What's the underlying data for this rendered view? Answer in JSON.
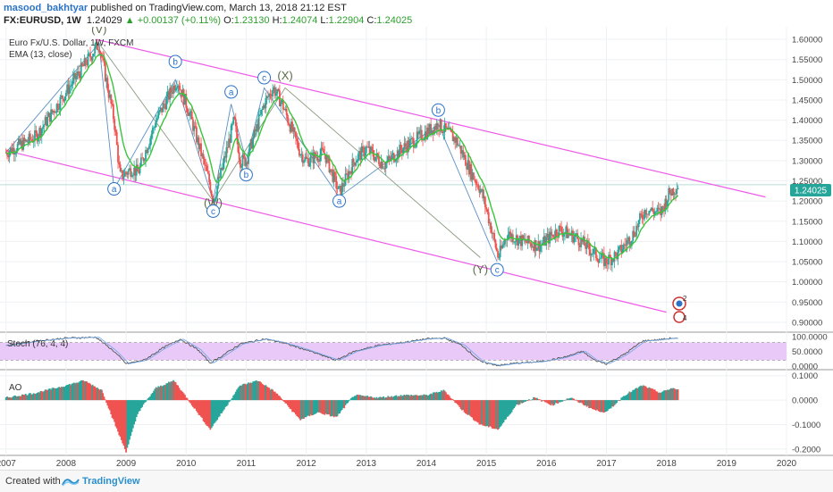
{
  "header": {
    "author": "masood_bakhtyar",
    "published": "published on TradingView.com, March 13, 2018 21:12 EST",
    "symbol": "FX:EURUSD, 1W",
    "last": "1.24029",
    "change": "+0.00137 (+0.11%)",
    "open_label": "O:",
    "open": "1.23130",
    "high_label": "H:",
    "high": "1.24074",
    "low_label": "L:",
    "low": "1.22904",
    "close_label": "C:",
    "close": "1.24025"
  },
  "legend": {
    "title": "Euro Fx/U.S. Dollar, 1W, FXCM",
    "ema": "EMA (13, close)",
    "stoch": "Stoch (76, 4, 4)",
    "ao": "AO"
  },
  "footer": {
    "created": "Created with",
    "brand": "TradingView"
  },
  "colors": {
    "up": "#26a69a",
    "down": "#ef5350",
    "ema": "#3bc43b",
    "channel": "#ee5be8",
    "wave": "#5b8fc4",
    "wave_grey": "#8a9a80",
    "stoch_fill": "#e8c9f7",
    "price_badge": "#26a69a"
  },
  "chart_data": [
    {
      "type": "candlestick",
      "title": "Euro Fx/U.S. Dollar, 1W, FXCM",
      "x_ticks": [
        "2007",
        "2008",
        "2009",
        "2010",
        "2011",
        "2012",
        "2013",
        "2014",
        "2015",
        "2016",
        "2017",
        "2018",
        "2019",
        "2020"
      ],
      "y_ticks": [
        "1.60000",
        "1.55000",
        "1.50000",
        "1.45000",
        "1.40000",
        "1.35000",
        "1.30000",
        "1.25000",
        "1.20000",
        "1.15000",
        "1.10000",
        "1.05000",
        "1.00000",
        "0.95000",
        "0.90000"
      ],
      "ylim": [
        0.88,
        1.62
      ],
      "last_price": "1.24025",
      "price_path": [
        [
          2007.0,
          1.32
        ],
        [
          2007.5,
          1.36
        ],
        [
          2008.0,
          1.47
        ],
        [
          2008.55,
          1.59
        ],
        [
          2008.8,
          1.4
        ],
        [
          2008.9,
          1.26
        ],
        [
          2009.1,
          1.28
        ],
        [
          2009.2,
          1.27
        ],
        [
          2009.5,
          1.4
        ],
        [
          2009.85,
          1.5
        ],
        [
          2010.05,
          1.42
        ],
        [
          2010.4,
          1.24
        ],
        [
          2010.45,
          1.2
        ],
        [
          2010.6,
          1.28
        ],
        [
          2010.8,
          1.4
        ],
        [
          2010.9,
          1.3
        ],
        [
          2011.0,
          1.3
        ],
        [
          2011.3,
          1.44
        ],
        [
          2011.45,
          1.48
        ],
        [
          2011.6,
          1.44
        ],
        [
          2011.9,
          1.32
        ],
        [
          2012.0,
          1.3
        ],
        [
          2012.3,
          1.32
        ],
        [
          2012.55,
          1.22
        ],
        [
          2012.8,
          1.3
        ],
        [
          2013.0,
          1.33
        ],
        [
          2013.3,
          1.29
        ],
        [
          2013.6,
          1.33
        ],
        [
          2013.9,
          1.36
        ],
        [
          2014.2,
          1.39
        ],
        [
          2014.5,
          1.35
        ],
        [
          2014.75,
          1.27
        ],
        [
          2014.9,
          1.23
        ],
        [
          2015.0,
          1.18
        ],
        [
          2015.2,
          1.06
        ],
        [
          2015.35,
          1.12
        ],
        [
          2015.6,
          1.1
        ],
        [
          2015.9,
          1.09
        ],
        [
          2016.2,
          1.13
        ],
        [
          2016.5,
          1.11
        ],
        [
          2016.8,
          1.07
        ],
        [
          2016.98,
          1.05
        ],
        [
          2017.2,
          1.07
        ],
        [
          2017.45,
          1.12
        ],
        [
          2017.65,
          1.18
        ],
        [
          2017.9,
          1.17
        ],
        [
          2018.05,
          1.22
        ],
        [
          2018.2,
          1.24
        ]
      ],
      "ema_label": "EMA (13, close)",
      "channel_upper": [
        [
          2008.5,
          1.6
        ],
        [
          2019.65,
          1.21
        ]
      ],
      "channel_lower": [
        [
          2007.0,
          1.325
        ],
        [
          2018.0,
          0.925
        ]
      ],
      "wave_labels": [
        {
          "text": "(V)",
          "x": 2008.55,
          "y": 1.625,
          "style": "plain"
        },
        {
          "text": "a",
          "x": 2008.8,
          "y": 1.23,
          "style": "circle"
        },
        {
          "text": "b",
          "x": 2009.82,
          "y": 1.545,
          "style": "circle"
        },
        {
          "text": "(W)",
          "x": 2010.45,
          "y": 1.195,
          "style": "plain"
        },
        {
          "text": "c",
          "x": 2010.45,
          "y": 1.175,
          "style": "circle"
        },
        {
          "text": "a",
          "x": 2010.75,
          "y": 1.47,
          "style": "circle"
        },
        {
          "text": "b",
          "x": 2011.0,
          "y": 1.265,
          "style": "circle"
        },
        {
          "text": "c",
          "x": 2011.3,
          "y": 1.505,
          "style": "circle"
        },
        {
          "text": "(X)",
          "x": 2011.65,
          "y": 1.51,
          "style": "plain"
        },
        {
          "text": "a",
          "x": 2012.55,
          "y": 1.2,
          "style": "circle"
        },
        {
          "text": "b",
          "x": 2014.2,
          "y": 1.425,
          "style": "circle"
        },
        {
          "text": "(Y)",
          "x": 2014.9,
          "y": 1.03,
          "style": "plain"
        },
        {
          "text": "c",
          "x": 2015.18,
          "y": 1.03,
          "style": "circle"
        }
      ],
      "wave_lines": [
        [
          [
            2007.0,
            1.32
          ],
          [
            2008.55,
            1.59
          ],
          [
            2008.8,
            1.23
          ],
          [
            2009.82,
            1.5
          ],
          [
            2010.45,
            1.2
          ],
          [
            2010.75,
            1.44
          ],
          [
            2011.0,
            1.3
          ],
          [
            2011.3,
            1.48
          ],
          [
            2012.55,
            1.21
          ],
          [
            2014.2,
            1.39
          ],
          [
            2015.18,
            1.05
          ]
        ]
      ],
      "grey_lines": [
        [
          [
            2008.55,
            1.59
          ],
          [
            2010.45,
            1.2
          ],
          [
            2011.65,
            1.48
          ],
          [
            2014.9,
            1.06
          ]
        ]
      ]
    },
    {
      "type": "line",
      "title": "Stoch (76, 4, 4)",
      "y_ticks": [
        "100.0000",
        "50.0000",
        "0.0000"
      ],
      "ylim": [
        0,
        100
      ],
      "band": [
        20,
        80
      ],
      "k_path": [
        [
          2007.0,
          70
        ],
        [
          2007.5,
          85
        ],
        [
          2008.0,
          95
        ],
        [
          2008.5,
          98
        ],
        [
          2008.8,
          50
        ],
        [
          2009.0,
          8
        ],
        [
          2009.3,
          20
        ],
        [
          2009.6,
          60
        ],
        [
          2009.9,
          92
        ],
        [
          2010.2,
          55
        ],
        [
          2010.4,
          10
        ],
        [
          2010.6,
          35
        ],
        [
          2010.9,
          75
        ],
        [
          2011.3,
          92
        ],
        [
          2011.6,
          80
        ],
        [
          2012.0,
          55
        ],
        [
          2012.5,
          20
        ],
        [
          2012.8,
          50
        ],
        [
          2013.2,
          70
        ],
        [
          2013.6,
          80
        ],
        [
          2014.0,
          92
        ],
        [
          2014.3,
          95
        ],
        [
          2014.6,
          70
        ],
        [
          2014.9,
          15
        ],
        [
          2015.2,
          2
        ],
        [
          2015.5,
          10
        ],
        [
          2015.9,
          15
        ],
        [
          2016.3,
          30
        ],
        [
          2016.6,
          50
        ],
        [
          2016.8,
          20
        ],
        [
          2017.0,
          8
        ],
        [
          2017.3,
          40
        ],
        [
          2017.6,
          85
        ],
        [
          2017.9,
          90
        ],
        [
          2018.1,
          95
        ],
        [
          2018.2,
          92
        ]
      ]
    },
    {
      "type": "bar",
      "title": "AO",
      "y_ticks": [
        "0.1000",
        "0.0000",
        "-0.1000",
        "-0.2000"
      ],
      "ylim": [
        -0.215,
        0.11
      ],
      "bar_profile": [
        [
          2007.0,
          0.01
        ],
        [
          2007.5,
          0.03
        ],
        [
          2008.0,
          0.06
        ],
        [
          2008.3,
          0.08
        ],
        [
          2008.6,
          0.04
        ],
        [
          2008.85,
          -0.12
        ],
        [
          2009.0,
          -0.21
        ],
        [
          2009.2,
          -0.05
        ],
        [
          2009.5,
          0.05
        ],
        [
          2009.8,
          0.08
        ],
        [
          2010.1,
          -0.02
        ],
        [
          2010.4,
          -0.12
        ],
        [
          2010.6,
          -0.05
        ],
        [
          2010.9,
          0.06
        ],
        [
          2011.2,
          0.08
        ],
        [
          2011.5,
          0.03
        ],
        [
          2011.9,
          -0.08
        ],
        [
          2012.2,
          -0.05
        ],
        [
          2012.5,
          -0.07
        ],
        [
          2012.8,
          0.02
        ],
        [
          2013.2,
          0.01
        ],
        [
          2013.6,
          0.02
        ],
        [
          2014.0,
          0.02
        ],
        [
          2014.3,
          0.04
        ],
        [
          2014.6,
          -0.04
        ],
        [
          2014.9,
          -0.1
        ],
        [
          2015.2,
          -0.12
        ],
        [
          2015.5,
          -0.02
        ],
        [
          2015.8,
          0.01
        ],
        [
          2016.1,
          -0.02
        ],
        [
          2016.4,
          0.01
        ],
        [
          2016.8,
          -0.04
        ],
        [
          2017.0,
          -0.05
        ],
        [
          2017.3,
          0.02
        ],
        [
          2017.6,
          0.06
        ],
        [
          2017.9,
          0.03
        ],
        [
          2018.1,
          0.05
        ],
        [
          2018.2,
          0.04
        ]
      ]
    }
  ]
}
